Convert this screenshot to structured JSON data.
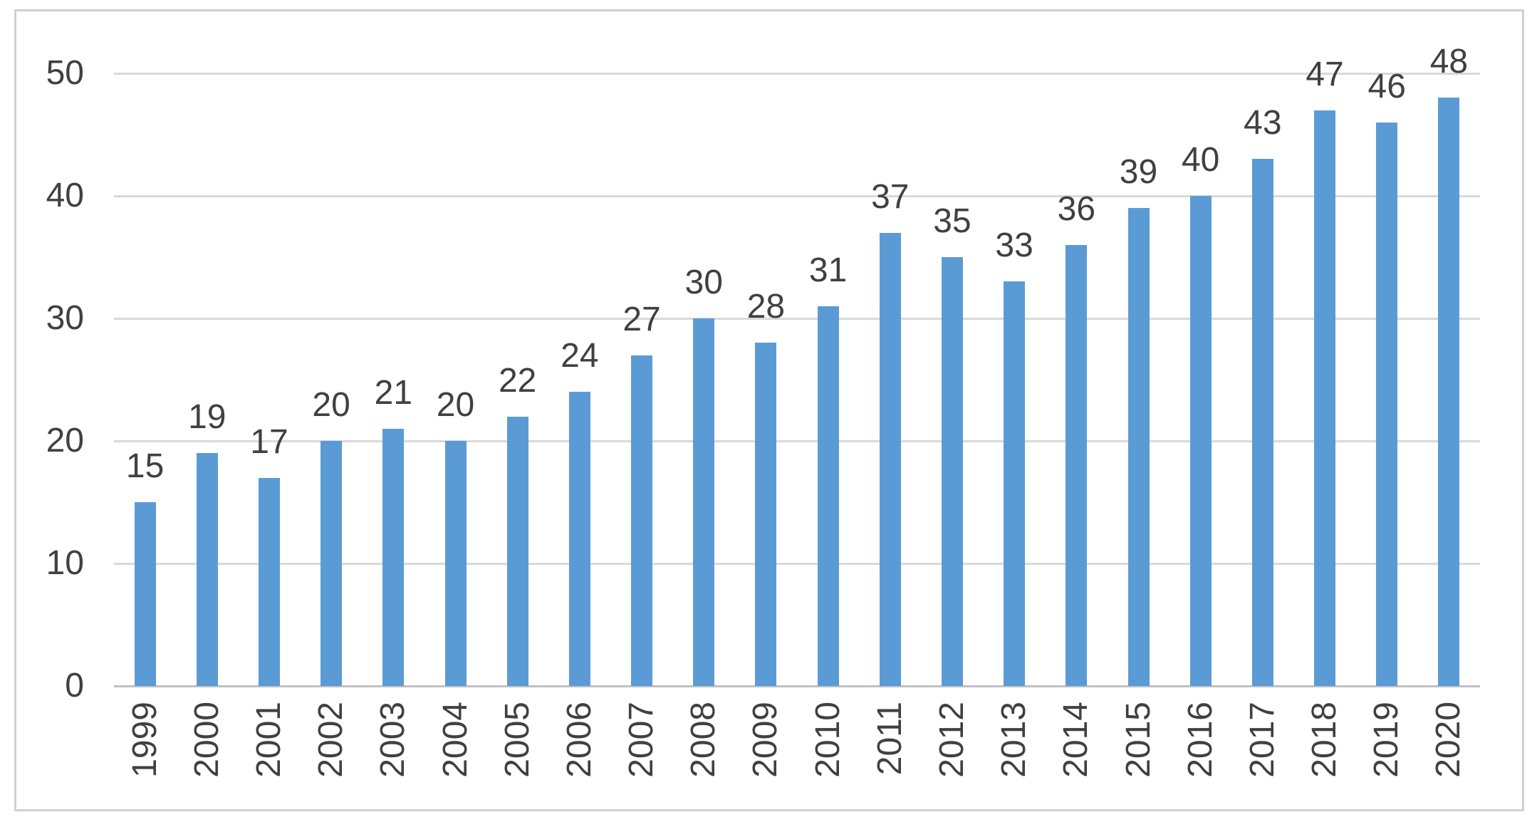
{
  "chart_data": {
    "type": "bar",
    "title": "",
    "xlabel": "",
    "ylabel": "",
    "categories": [
      "1999",
      "2000",
      "2001",
      "2002",
      "2003",
      "2004",
      "2005",
      "2006",
      "2007",
      "2008",
      "2009",
      "2010",
      "2011",
      "2012",
      "2013",
      "2014",
      "2015",
      "2016",
      "2017",
      "2018",
      "2019",
      "2020"
    ],
    "values": [
      15,
      19,
      17,
      20,
      21,
      20,
      22,
      24,
      27,
      30,
      28,
      31,
      37,
      35,
      33,
      36,
      39,
      40,
      43,
      47,
      46,
      48
    ],
    "ylim": [
      0,
      50
    ],
    "yticks": [
      0,
      10,
      20,
      30,
      40,
      50
    ],
    "grid": true,
    "legend": false,
    "data_labels_visible": true,
    "x_label_rotation_deg": -90
  },
  "style": {
    "bar_color": "#5B9BD5",
    "gridline_color": "#D9D9D9",
    "axis_line_color": "#C0C0C0",
    "text_color": "#404040",
    "frame_border_color": "#D0D0D0",
    "background_color": "#FFFFFF"
  }
}
